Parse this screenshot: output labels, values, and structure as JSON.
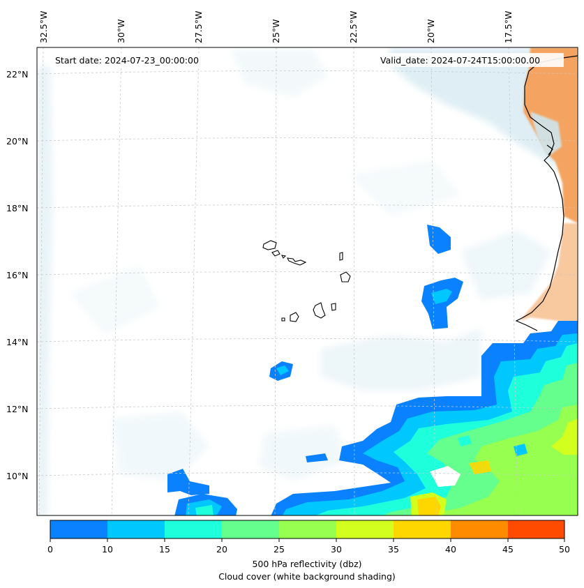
{
  "map": {
    "start_date_label": "Start date: 2024-07-23_00:00:00",
    "valid_date_label": "Valid_date: 2024-07-24T15:00:00.00",
    "longitude_labels": [
      "32.5°W",
      "30°W",
      "27.5°W",
      "25°W",
      "22.5°W",
      "20°W",
      "17.5°W"
    ],
    "latitude_labels": [
      "22°N",
      "20°N",
      "18°N",
      "16°N",
      "14°N",
      "12°N",
      "10°N"
    ]
  },
  "colorbar": {
    "tick_labels": [
      "0",
      "10",
      "15",
      "20",
      "25",
      "30",
      "35",
      "40",
      "45",
      "50"
    ],
    "bins": [
      {
        "from": 0,
        "to": 10,
        "color": "#0a82ff"
      },
      {
        "from": 10,
        "to": 15,
        "color": "#00c8ff"
      },
      {
        "from": 15,
        "to": 20,
        "color": "#1effdc"
      },
      {
        "from": 20,
        "to": 25,
        "color": "#64ff8c"
      },
      {
        "from": 25,
        "to": 30,
        "color": "#96ff50"
      },
      {
        "from": 30,
        "to": 35,
        "color": "#d2ff1e"
      },
      {
        "from": 35,
        "to": 40,
        "color": "#ffd700"
      },
      {
        "from": 40,
        "to": 45,
        "color": "#ff8c00"
      },
      {
        "from": 45,
        "to": 50,
        "color": "#ff4b00"
      }
    ],
    "label_line1": "500 hPa reflectivity (dbz)",
    "label_line2": "Cloud cover (white background shading)"
  },
  "colors": {
    "cloud": "#d8ebf2",
    "land": "#f4a460",
    "coast": "#000000",
    "grid": "#c8c8c8"
  }
}
